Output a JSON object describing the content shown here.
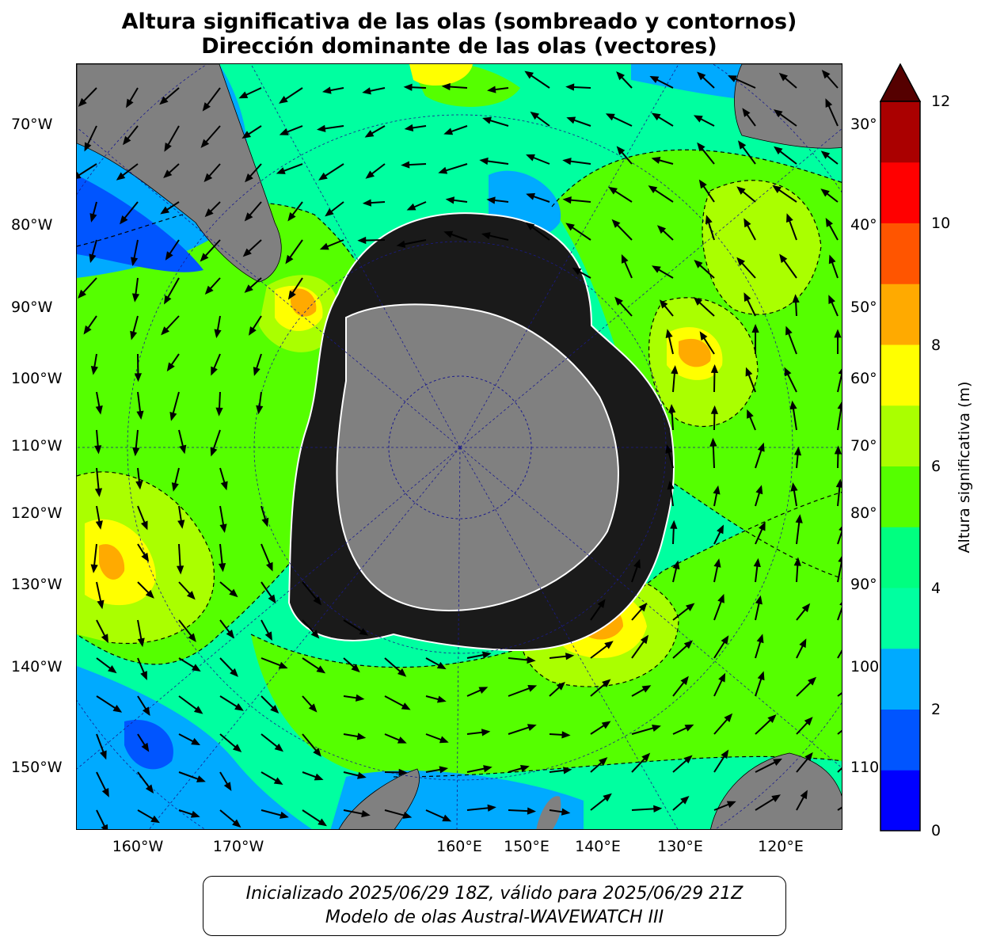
{
  "title": {
    "line1": "Altura significativa de las olas (sombreado y contornos)",
    "line2": "Dirección dominante de las olas (vectores)"
  },
  "map": {
    "projection": "south polar stereographic",
    "left_labels": [
      "70°W",
      "80°W",
      "90°W",
      "100°W",
      "110°W",
      "120°W",
      "130°W",
      "140°W",
      "150°W"
    ],
    "right_labels": [
      "30°",
      "40°",
      "50°",
      "60°",
      "70°",
      "80°",
      "90°",
      "100",
      "110"
    ],
    "bottom_labels": [
      "160°W",
      "170°W",
      "160°E",
      "150°E",
      "140°E",
      "130°E",
      "120°E"
    ],
    "colors": {
      "land": "#808080",
      "ice": "#1a1a1a",
      "gridlines": "#1a1a8c"
    }
  },
  "colorbar": {
    "label": "Altura significativa (m)",
    "ticks": [
      "0",
      "2",
      "4",
      "6",
      "8",
      "10",
      "12"
    ],
    "min": 0,
    "max": 12,
    "extend": "max",
    "colors": [
      "#0000ff",
      "#0055ff",
      "#00aaff",
      "#00ffa0",
      "#00ff80",
      "#55ff00",
      "#aaff00",
      "#ffff00",
      "#ffaa00",
      "#ff5500",
      "#ff0000",
      "#aa0000",
      "#550000"
    ]
  },
  "footer": {
    "line1": "Inicializado 2025/06/29 18Z, válido para 2025/06/29 21Z",
    "line2": "Modelo de olas Austral-WAVEWATCH III"
  }
}
